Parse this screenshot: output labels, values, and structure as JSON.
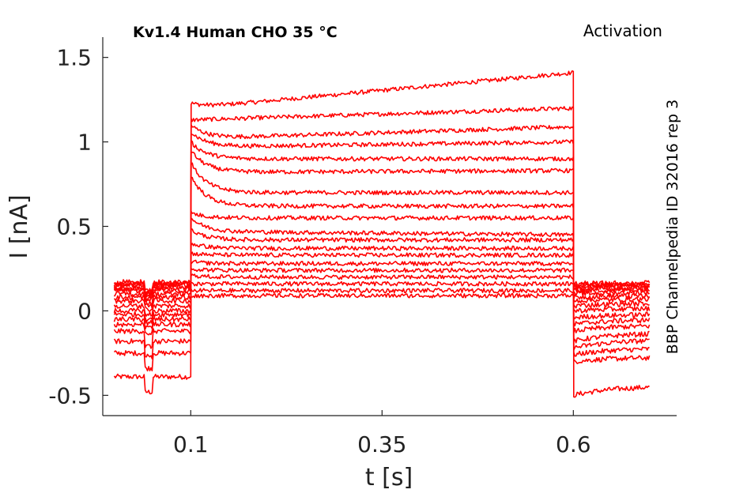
{
  "colors": {
    "trace": "#ff0000",
    "axis": "#222222",
    "background": "#ffffff"
  },
  "chart_data": {
    "type": "line",
    "title": "Kv1.4  Human  CHO  35 °C",
    "protocol_label": "Activation",
    "source_label": "BBP Channelpedia ID 32016 rep 3",
    "xlabel": "t [s]",
    "ylabel": "I [nA]",
    "xlim": [
      -0.015,
      0.735
    ],
    "ylim": [
      -0.62,
      1.62
    ],
    "xticks": [
      0.1,
      0.35,
      0.6
    ],
    "xtick_labels": [
      "0.1",
      "0.35",
      "0.6"
    ],
    "yticks": [
      -0.5,
      0,
      0.5,
      1,
      1.5
    ],
    "ytick_labels": [
      "-0.5",
      "0",
      "0.5",
      "1",
      "1.5"
    ],
    "grid": false,
    "legend": "none",
    "x_range": [
      0.0,
      0.7
    ],
    "step_window": [
      0.1,
      0.6
    ],
    "series": [
      {
        "values_t": [
          0.0,
          0.1,
          0.101,
          0.6,
          0.601,
          0.7
        ],
        "hold": -0.39,
        "peak": 1.23,
        "start": 1.2,
        "end": 1.41,
        "tail": -0.5
      },
      {
        "values_t": [
          0.0,
          0.1,
          0.101,
          0.6,
          0.601,
          0.7
        ],
        "hold": -0.25,
        "peak": 1.13,
        "start": 1.13,
        "end": 1.2,
        "tail": -0.3
      },
      {
        "values_t": [
          0.0,
          0.1,
          0.101,
          0.6,
          0.601,
          0.7
        ],
        "hold": -0.18,
        "peak": 1.1,
        "start": 1.02,
        "end": 1.09,
        "tail": -0.26
      },
      {
        "values_t": [
          0.0,
          0.1,
          0.101,
          0.6,
          0.601,
          0.7
        ],
        "hold": -0.12,
        "peak": 1.06,
        "start": 0.97,
        "end": 1.0,
        "tail": -0.22
      },
      {
        "values_t": [
          0.0,
          0.1,
          0.101,
          0.6,
          0.601,
          0.7
        ],
        "hold": -0.08,
        "peak": 1.0,
        "start": 0.9,
        "end": 0.9,
        "tail": -0.18
      },
      {
        "values_t": [
          0.0,
          0.1,
          0.101,
          0.6,
          0.601,
          0.7
        ],
        "hold": -0.05,
        "peak": 0.95,
        "start": 0.82,
        "end": 0.83,
        "tail": -0.12
      },
      {
        "values_t": [
          0.0,
          0.1,
          0.101,
          0.6,
          0.601,
          0.7
        ],
        "hold": -0.02,
        "peak": 0.88,
        "start": 0.7,
        "end": 0.7,
        "tail": -0.08
      },
      {
        "values_t": [
          0.0,
          0.1,
          0.101,
          0.6,
          0.601,
          0.7
        ],
        "hold": 0.0,
        "peak": 0.8,
        "start": 0.62,
        "end": 0.62,
        "tail": -0.04
      },
      {
        "values_t": [
          0.0,
          0.1,
          0.101,
          0.6,
          0.601,
          0.7
        ],
        "hold": 0.03,
        "peak": 0.58,
        "start": 0.55,
        "end": 0.55,
        "tail": 0.0
      },
      {
        "values_t": [
          0.0,
          0.1,
          0.101,
          0.6,
          0.601,
          0.7
        ],
        "hold": 0.06,
        "peak": 0.55,
        "start": 0.47,
        "end": 0.45,
        "tail": 0.03
      },
      {
        "values_t": [
          0.0,
          0.1,
          0.101,
          0.6,
          0.601,
          0.7
        ],
        "hold": 0.08,
        "peak": 0.48,
        "start": 0.42,
        "end": 0.42,
        "tail": 0.06
      },
      {
        "values_t": [
          0.0,
          0.1,
          0.101,
          0.6,
          0.601,
          0.7
        ],
        "hold": 0.1,
        "peak": 0.4,
        "start": 0.37,
        "end": 0.37,
        "tail": 0.08
      },
      {
        "values_t": [
          0.0,
          0.1,
          0.101,
          0.6,
          0.601,
          0.7
        ],
        "hold": 0.12,
        "peak": 0.34,
        "start": 0.33,
        "end": 0.33,
        "tail": 0.1
      },
      {
        "values_t": [
          0.0,
          0.1,
          0.101,
          0.6,
          0.601,
          0.7
        ],
        "hold": 0.13,
        "peak": 0.29,
        "start": 0.28,
        "end": 0.28,
        "tail": 0.12
      },
      {
        "values_t": [
          0.0,
          0.1,
          0.101,
          0.6,
          0.601,
          0.7
        ],
        "hold": 0.14,
        "peak": 0.25,
        "start": 0.24,
        "end": 0.24,
        "tail": 0.13
      },
      {
        "values_t": [
          0.0,
          0.1,
          0.101,
          0.6,
          0.601,
          0.7
        ],
        "hold": 0.15,
        "peak": 0.21,
        "start": 0.2,
        "end": 0.2,
        "tail": 0.14
      },
      {
        "values_t": [
          0.0,
          0.1,
          0.101,
          0.6,
          0.601,
          0.7
        ],
        "hold": 0.16,
        "peak": 0.16,
        "start": 0.16,
        "end": 0.16,
        "tail": 0.15
      },
      {
        "values_t": [
          0.0,
          0.1,
          0.101,
          0.6,
          0.601,
          0.7
        ],
        "hold": 0.16,
        "peak": 0.12,
        "start": 0.12,
        "end": 0.12,
        "tail": 0.15
      },
      {
        "values_t": [
          0.0,
          0.1,
          0.101,
          0.6,
          0.601,
          0.7
        ],
        "hold": 0.17,
        "peak": 0.09,
        "start": 0.09,
        "end": 0.09,
        "tail": 0.16
      }
    ]
  }
}
